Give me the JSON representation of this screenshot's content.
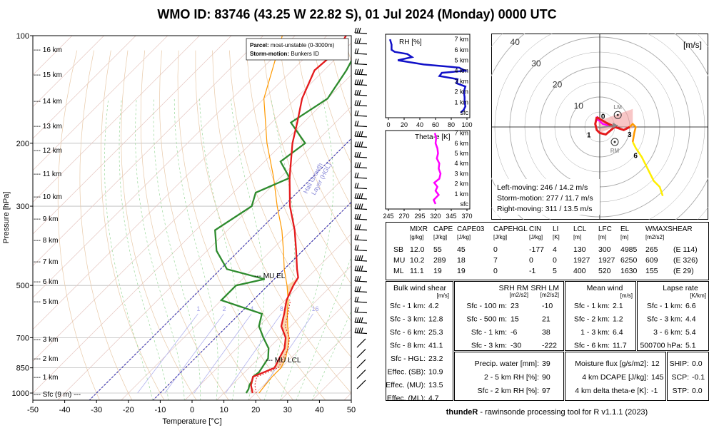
{
  "title": "WMO ID: 83746 (43.25 W 22.82 S), 01 Jul 2024 (Monday) 0000 UTC",
  "skewt": {
    "xlabel": "Temperature [°C]",
    "ylabel": "Pressure [hPa]",
    "x_ticks": [
      "-50",
      "-40",
      "-30",
      "-20",
      "-10",
      "0",
      "10",
      "20",
      "30",
      "40",
      "50"
    ],
    "p_ticks": [
      "100",
      "200",
      "300",
      "500",
      "700",
      "850",
      "1000"
    ],
    "height_labels": [
      "16 km",
      "15 km",
      "14 km",
      "13 km",
      "12 km",
      "11 km",
      "10 km",
      "9 km",
      "8 km",
      "7 km",
      "6 km",
      "5 km",
      "3 km",
      "2 km",
      "1 km"
    ],
    "sfc_label": "Sfc (9 m)",
    "legend_parcel_label": "Parcel:",
    "legend_parcel_value": "most-unstable (0-3000m)",
    "legend_storm_label": "Storm-motion:",
    "legend_storm_value": "Bunkers ID",
    "mu_el": "MU EL",
    "mu_lcl": "MU LCL",
    "hail_growth": "Hail Growth",
    "hail_layer": "Layer (HGL)",
    "mixing_labels": [
      "1",
      "2",
      "4",
      "8",
      "16"
    ]
  },
  "chart_data": [
    {
      "type": "line",
      "name": "skew-t",
      "temperature": [
        [
          1000,
          19
        ],
        [
          975,
          17.5
        ],
        [
          950,
          16
        ],
        [
          925,
          15
        ],
        [
          900,
          14
        ],
        [
          875,
          16
        ],
        [
          850,
          18
        ],
        [
          800,
          16.5
        ],
        [
          750,
          15
        ],
        [
          700,
          12
        ],
        [
          650,
          7
        ],
        [
          600,
          4
        ],
        [
          550,
          0.5
        ],
        [
          500,
          -2
        ],
        [
          475,
          -3
        ],
        [
          450,
          -6
        ],
        [
          400,
          -12
        ],
        [
          350,
          -19
        ],
        [
          300,
          -28
        ],
        [
          250,
          -37
        ],
        [
          200,
          -47
        ],
        [
          175,
          -52
        ],
        [
          150,
          -58
        ],
        [
          125,
          -63
        ],
        [
          110,
          -62
        ],
        [
          100,
          -64
        ]
      ],
      "dewpoint": [
        [
          1000,
          17
        ],
        [
          975,
          16.5
        ],
        [
          950,
          15.5
        ],
        [
          925,
          15
        ],
        [
          900,
          14
        ],
        [
          875,
          14.5
        ],
        [
          850,
          14
        ],
        [
          800,
          13
        ],
        [
          750,
          10
        ],
        [
          700,
          5
        ],
        [
          650,
          0
        ],
        [
          600,
          -3
        ],
        [
          550,
          -20
        ],
        [
          500,
          -20
        ],
        [
          480,
          -13
        ],
        [
          450,
          -28
        ],
        [
          400,
          -37
        ],
        [
          350,
          -44
        ],
        [
          300,
          -40
        ],
        [
          275,
          -43
        ],
        [
          250,
          -37
        ],
        [
          225,
          -45
        ],
        [
          200,
          -43
        ],
        [
          175,
          -54
        ],
        [
          150,
          -50
        ],
        [
          125,
          -53
        ],
        [
          100,
          -58
        ]
      ],
      "parcel": [
        [
          1000,
          21
        ],
        [
          950,
          20.5
        ],
        [
          900,
          20
        ],
        [
          850,
          20
        ],
        [
          800,
          18.5
        ],
        [
          750,
          16
        ],
        [
          700,
          13
        ],
        [
          650,
          9
        ],
        [
          600,
          5
        ],
        [
          550,
          1
        ],
        [
          500,
          -4
        ],
        [
          450,
          -10
        ],
        [
          400,
          -16
        ],
        [
          350,
          -23
        ],
        [
          300,
          -32
        ],
        [
          250,
          -42
        ],
        [
          200,
          -55
        ],
        [
          150,
          -70
        ],
        [
          100,
          -84
        ]
      ]
    },
    {
      "type": "line",
      "name": "RH profile",
      "xlabel_printed": "RH [%]",
      "x_ticks": [
        "0",
        "20",
        "40",
        "60",
        "80",
        "100"
      ],
      "y_ticks": [
        "sfc",
        "1 km",
        "2 km",
        "3 km",
        "4 km",
        "5 km",
        "6 km",
        "7 km"
      ],
      "points": [
        [
          0,
          92
        ],
        [
          0.3,
          96
        ],
        [
          0.6,
          98
        ],
        [
          1,
          97
        ],
        [
          1.5,
          97
        ],
        [
          2,
          96
        ],
        [
          2.5,
          98
        ],
        [
          2.8,
          87
        ],
        [
          3.2,
          88
        ],
        [
          3.5,
          65
        ],
        [
          3.8,
          68
        ],
        [
          4,
          98
        ],
        [
          4.3,
          90
        ],
        [
          4.6,
          45
        ],
        [
          5,
          12
        ],
        [
          5.3,
          30
        ],
        [
          5.6,
          24
        ],
        [
          5.8,
          8
        ],
        [
          6,
          4
        ],
        [
          6.5,
          4
        ],
        [
          7,
          2
        ]
      ]
    },
    {
      "type": "line",
      "name": "Theta-e profile",
      "xlabel_printed": "Theta-e [K]",
      "x_ticks": [
        "245",
        "270",
        "295",
        "320",
        "345",
        "370"
      ],
      "y_ticks": [
        "sfc",
        "1 km",
        "2 km",
        "3 km",
        "4 km",
        "5 km",
        "6 km",
        "7 km"
      ],
      "points": [
        [
          0,
          320
        ],
        [
          0.4,
          317
        ],
        [
          0.9,
          325
        ],
        [
          1.3,
          320
        ],
        [
          1.7,
          323
        ],
        [
          2.1,
          318
        ],
        [
          2.5,
          326
        ],
        [
          3,
          328
        ],
        [
          3.5,
          325
        ],
        [
          4,
          326
        ],
        [
          4.5,
          322
        ],
        [
          5,
          324
        ],
        [
          5.5,
          323
        ],
        [
          6,
          320
        ],
        [
          6.5,
          321
        ],
        [
          7,
          319
        ]
      ]
    },
    {
      "type": "scatter",
      "name": "hodograph",
      "unit": "[m/s]",
      "ring_labels": [
        "10",
        "20",
        "30",
        "40"
      ],
      "lm_label": "LM",
      "rm_label": "RM",
      "height_marks": [
        "0",
        "1",
        "3",
        "6"
      ],
      "points_uv": [
        [
          -0.5,
          2
        ],
        [
          -1,
          3.5
        ],
        [
          -0.5,
          2.5
        ],
        [
          1,
          1
        ],
        [
          3,
          0.5
        ],
        [
          5.2,
          0.2
        ],
        [
          2,
          -2.5
        ],
        [
          0,
          -2
        ],
        [
          -1,
          -1
        ],
        [
          -1.5,
          1
        ],
        [
          -1,
          3.3
        ],
        [
          2,
          1.5
        ],
        [
          4,
          0.5
        ],
        [
          5,
          0
        ],
        [
          8,
          -1
        ],
        [
          10,
          0
        ],
        [
          11,
          1
        ],
        [
          12,
          0
        ],
        [
          11.5,
          -2
        ],
        [
          11,
          -5
        ],
        [
          12,
          -7
        ],
        [
          14,
          -10
        ],
        [
          16,
          -14
        ],
        [
          18,
          -18
        ],
        [
          20,
          -20
        ],
        [
          21,
          -23
        ]
      ],
      "lm_uv": [
        6,
        4
      ],
      "rm_uv": [
        5,
        -5
      ],
      "sm_uv": [
        6,
        0.5
      ],
      "left_moving": "Left-moving: 246 / 14.2 m/s",
      "storm_motion": "Storm-motion: 277 / 11.7 m/s",
      "right_moving": "Right-moving: 311 / 13.5 m/s"
    }
  ],
  "parcel_table": {
    "headers": [
      "",
      "MIXR",
      "CAPE",
      "CAPE03",
      "CAPEHGL",
      "CIN",
      "LI",
      "LCL",
      "LFC",
      "EL",
      "WMAXSHEAR"
    ],
    "units": [
      "",
      "[g/kg]",
      "[J/kg]",
      "[J/kg]",
      "[J/kg]",
      "[J/kg]",
      "[K]",
      "[m]",
      "[m]",
      "[m]",
      "[m2/s2]"
    ],
    "rows": [
      [
        "SB",
        "12.0",
        "55",
        "45",
        "0",
        "-177",
        "4",
        "130",
        "300",
        "4985",
        "265",
        "(E 114)"
      ],
      [
        "MU",
        "10.2",
        "289",
        "18",
        "7",
        "0",
        "0",
        "1927",
        "1927",
        "6250",
        "609",
        "(E 326)"
      ],
      [
        "ML",
        "11.1",
        "19",
        "19",
        "0",
        "-1",
        "5",
        "400",
        "520",
        "1630",
        "155",
        "(E 29)"
      ]
    ]
  },
  "bulk_shear": {
    "title": "Bulk wind shear",
    "unit": "[m/s]",
    "rows": [
      [
        "Sfc - 1 km:",
        "4.2"
      ],
      [
        "Sfc - 3 km:",
        "12.8"
      ],
      [
        "Sfc - 6 km:",
        "25.3"
      ],
      [
        "Sfc - 8 km:",
        "41.1"
      ],
      [
        "Sfc - HGL:",
        "23.2"
      ],
      [
        "Effec. (SB):",
        "10.9"
      ],
      [
        "Effec. (MU):",
        "13.5"
      ],
      [
        "Effec. (ML):",
        "4.7"
      ]
    ]
  },
  "srh": {
    "h1": "SRH RM",
    "h2": "SRH LM",
    "u1": "[m2/s2]",
    "u2": "[m2/s2]",
    "rows": [
      [
        "Sfc - 100 m:",
        "23",
        "-10"
      ],
      [
        "Sfc - 500 m:",
        "15",
        "21"
      ],
      [
        "Sfc - 1 km:",
        "-6",
        "38"
      ],
      [
        "Sfc - 3 km:",
        "-30",
        "-222"
      ]
    ]
  },
  "mean_wind": {
    "title": "Mean wind",
    "unit": "[m/s]",
    "rows": [
      [
        "Sfc - 1 km:",
        "2.1"
      ],
      [
        "Sfc - 2 km:",
        "1.2"
      ],
      [
        "1 - 3 km:",
        "6.4"
      ],
      [
        "Sfc - 6 km:",
        "11.7"
      ]
    ]
  },
  "lapse_rate": {
    "title": "Lapse rate",
    "unit": "[K/km]",
    "rows": [
      [
        "Sfc - 1 km:",
        "6.6"
      ],
      [
        "Sfc - 3 km:",
        "4.4"
      ],
      [
        "3 - 6 km:",
        "5.4"
      ],
      [
        "500700 hPa:",
        "5.1"
      ]
    ]
  },
  "moisture": {
    "rows": [
      [
        "Precip. water [mm]:",
        "39"
      ],
      [
        "2 - 5 km RH [%]:",
        "90"
      ],
      [
        "Sfc - 2 km RH [%]:",
        "97"
      ]
    ]
  },
  "moisture2": {
    "rows": [
      [
        "Moisture flux [g/s/m2]:",
        "12"
      ],
      [
        "4 km DCAPE [J/kg]:",
        "145"
      ],
      [
        "4 km delta theta-e [K]:",
        "-1"
      ]
    ]
  },
  "composite": {
    "rows": [
      [
        "SHIP:",
        "0.0"
      ],
      [
        "SCP:",
        "-0.1"
      ],
      [
        "STP:",
        "0.0"
      ]
    ]
  },
  "footer_bold": "thundeR",
  "footer_rest": " - rawinsonde processing tool for R v1.1.1 (2023)",
  "colors": {
    "temperature": "#e41a1c",
    "dewpoint": "#2e8b2e",
    "parcel": "#ff9900",
    "rh": "#1010c8",
    "thetae": "#ff00ff",
    "cape_fill": "#f8cfa0"
  }
}
